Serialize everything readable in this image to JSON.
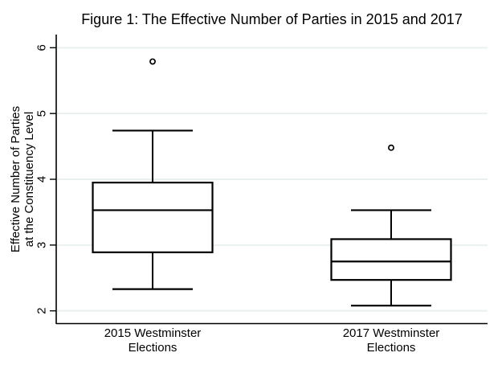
{
  "chart_data": {
    "type": "box",
    "title": "Figure 1: The Effective Number of Parties in 2015 and 2017",
    "ylabel_line1": "Effective Number of Parties",
    "ylabel_line2": "at the Constituency Level",
    "xlabel": "",
    "yticks": [
      2,
      3,
      4,
      5,
      6
    ],
    "ylim": [
      1.8,
      6.2
    ],
    "grid": true,
    "legend": "none",
    "series": [
      {
        "label_line1": "2015 Westminster",
        "label_line2": "Elections",
        "lower_whisker": 2.33,
        "q1": 2.89,
        "median": 3.53,
        "q3": 3.95,
        "upper_whisker": 4.74,
        "outliers": [
          5.79
        ]
      },
      {
        "label_line1": "2017 Westminster",
        "label_line2": "Elections",
        "lower_whisker": 2.08,
        "q1": 2.47,
        "median": 2.75,
        "q3": 3.09,
        "upper_whisker": 3.53,
        "outliers": [
          4.48
        ]
      }
    ],
    "colors": {
      "line": "#000000",
      "box_fill": "#ffffff",
      "gridline": "#e9f0ef",
      "background": "#ffffff"
    }
  }
}
